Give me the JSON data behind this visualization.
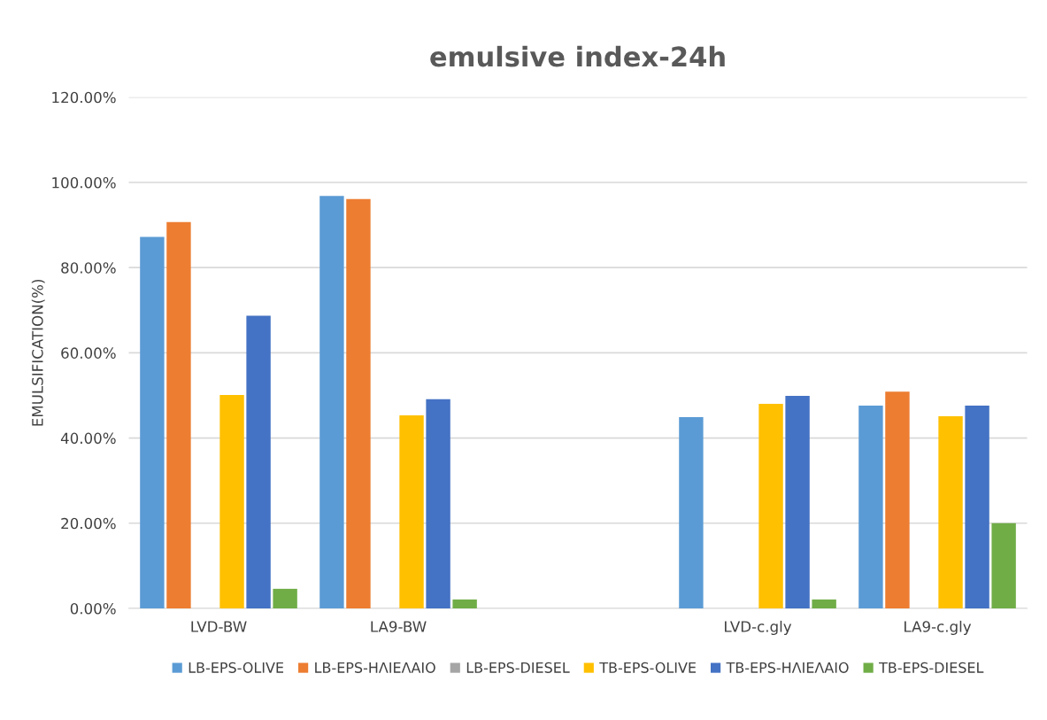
{
  "chart_data": {
    "type": "bar",
    "title": "emulsive index-24h",
    "ylabel": "EMULSIFICATION(%)",
    "categories": [
      "LVD-BW",
      "LA9-BW",
      null,
      "LVD-c.gly",
      "LA9-c.gly"
    ],
    "series": [
      {
        "name": "LB-EPS-OLIVE",
        "color": "#5b9bd5",
        "values": [
          87.2,
          96.8,
          null,
          44.9,
          47.6
        ]
      },
      {
        "name": "LB-EPS-ΗΛΙΕΛΑΙΟ",
        "color": "#ed7d31",
        "values": [
          90.7,
          96.1,
          null,
          0,
          50.9
        ]
      },
      {
        "name": "LB-EPS-DIESEL",
        "color": "#a5a5a5",
        "values": [
          0,
          0,
          null,
          0,
          0
        ]
      },
      {
        "name": "TB-EPS-OLIVE",
        "color": "#ffc000",
        "values": [
          50.1,
          45.3,
          null,
          48.0,
          45.1
        ]
      },
      {
        "name": "TB-EPS-ΗΛΙΕΛΑΙΟ",
        "color": "#4472c4",
        "values": [
          68.7,
          49.1,
          null,
          49.9,
          47.6
        ]
      },
      {
        "name": "TB-EPS-DIESEL",
        "color": "#70ad47",
        "values": [
          4.6,
          2.1,
          null,
          2.1,
          20.0
        ]
      }
    ],
    "ylim": [
      0,
      120
    ],
    "yticks": [
      {
        "value": 0,
        "label": "0.00%"
      },
      {
        "value": 20,
        "label": "20.00%"
      },
      {
        "value": 40,
        "label": "40.00%"
      },
      {
        "value": 60,
        "label": "60.00%"
      },
      {
        "value": 80,
        "label": "80.00%"
      },
      {
        "value": 100,
        "label": "100.00%"
      },
      {
        "value": 120,
        "label": "120.00%"
      }
    ],
    "grid": "y",
    "legend": "bottom"
  }
}
